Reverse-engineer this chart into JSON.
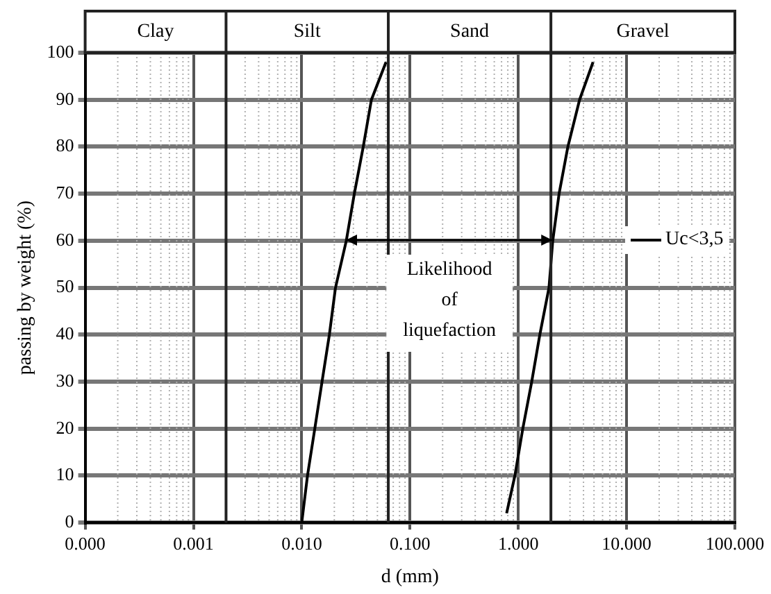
{
  "chart_data": {
    "type": "line",
    "xlabel": "d (mm)",
    "ylabel": "passing by weight (%)",
    "log": "x",
    "xlim": [
      0.0001,
      100
    ],
    "ylim": [
      0,
      100
    ],
    "xticks": [
      {
        "value": 0.0001,
        "label": "0.000"
      },
      {
        "value": 0.001,
        "label": "0.001"
      },
      {
        "value": 0.01,
        "label": "0.010"
      },
      {
        "value": 0.1,
        "label": "0.100"
      },
      {
        "value": 1,
        "label": "1.000"
      },
      {
        "value": 10,
        "label": "10.000"
      },
      {
        "value": 100,
        "label": "100.000"
      }
    ],
    "yticks": [
      0,
      10,
      20,
      30,
      40,
      50,
      60,
      70,
      80,
      90,
      100
    ],
    "grid": true,
    "legend": "right",
    "marker": "none",
    "line_style": "solid",
    "series": [
      {
        "name": "Uc<3,5",
        "color": "#000000",
        "x": [
          0.01,
          0.0113,
          0.0132,
          0.0154,
          0.018,
          0.0205,
          0.0258,
          0.0306,
          0.037,
          0.044,
          0.06
        ],
        "values": [
          0,
          10,
          20,
          30,
          40,
          50,
          60,
          70,
          80,
          90,
          98
        ]
      },
      {
        "color": "#000000",
        "x": [
          0.78,
          0.93,
          1.1,
          1.33,
          1.58,
          1.92,
          2.08,
          2.38,
          2.87,
          3.68,
          4.9
        ],
        "values": [
          2,
          10,
          20,
          30,
          40,
          50,
          60,
          70,
          80,
          90,
          98
        ]
      }
    ],
    "ref_lines": [
      {
        "axis": "x",
        "value": 0.002,
        "color": "#222222"
      },
      {
        "axis": "x",
        "value": 0.063,
        "color": "#222222"
      },
      {
        "axis": "x",
        "value": 2,
        "color": "#222222"
      }
    ],
    "annotations": [
      "Clay",
      "Silt",
      "Sand",
      "Gravel",
      "Likelihood of liquefaction"
    ]
  }
}
